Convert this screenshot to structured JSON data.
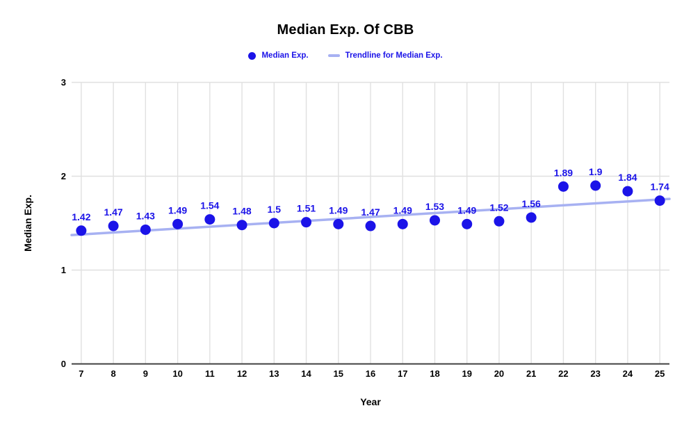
{
  "title": "Median Exp. Of CBB",
  "legend": {
    "series_label": "Median Exp.",
    "trendline_label": "Trendline for Median Exp."
  },
  "axes": {
    "x_label": "Year",
    "y_label": "Median Exp."
  },
  "colors": {
    "series": "#1b13e8",
    "trendline": "#a7b1f2",
    "point_label": "#1b13e8",
    "legend_text": "#1b13e8",
    "tick_text": "#000000",
    "gridline": "#e0e0e0",
    "axis_line": "#424242",
    "background": "#ffffff"
  },
  "chart_data": {
    "type": "scatter",
    "title": "Median Exp. Of CBB",
    "series_name": "Median Exp.",
    "trendline_name": "Trendline for Median Exp.",
    "xlabel": "Year",
    "ylabel": "Median Exp.",
    "x": [
      7,
      8,
      9,
      10,
      11,
      12,
      13,
      14,
      15,
      16,
      17,
      18,
      19,
      20,
      21,
      22,
      23,
      24,
      25
    ],
    "values": [
      1.42,
      1.47,
      1.43,
      1.49,
      1.54,
      1.48,
      1.5,
      1.51,
      1.49,
      1.47,
      1.49,
      1.53,
      1.49,
      1.52,
      1.56,
      1.89,
      1.9,
      1.84,
      1.74
    ],
    "point_labels": [
      "1.42",
      "1.47",
      "1.43",
      "1.49",
      "1.54",
      "1.48",
      "1.5",
      "1.51",
      "1.49",
      "1.47",
      "1.49",
      "1.53",
      "1.49",
      "1.52",
      "1.56",
      "1.89",
      "1.9",
      "1.84",
      "1.74"
    ],
    "x_ticks": [
      7,
      8,
      9,
      10,
      11,
      12,
      13,
      14,
      15,
      16,
      17,
      18,
      19,
      20,
      21,
      22,
      23,
      24,
      25
    ],
    "y_ticks": [
      0,
      1,
      2,
      3
    ],
    "xlim": [
      6.7,
      25.3
    ],
    "ylim": [
      0,
      3
    ],
    "grid": true,
    "legend_position": "top",
    "trendline": {
      "type": "linear",
      "slope": 0.0207,
      "intercept": 1.2345
    }
  }
}
